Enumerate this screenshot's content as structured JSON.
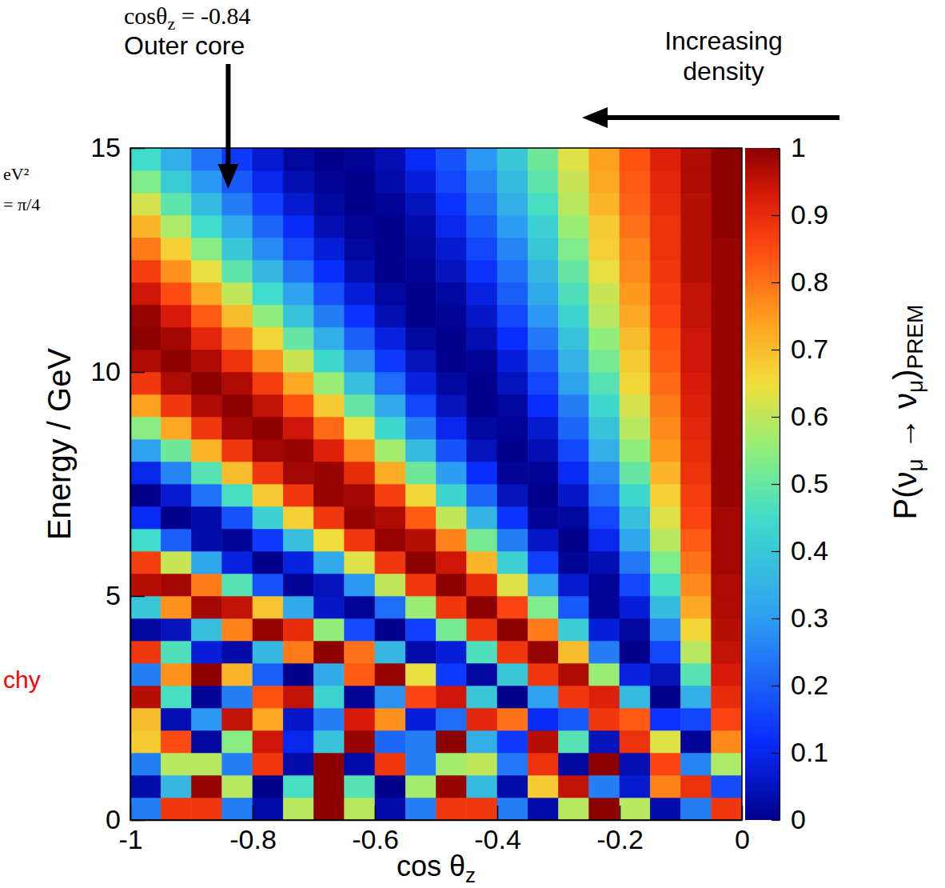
{
  "chart_data": {
    "type": "heatmap",
    "xlabel": [
      "cos θ",
      "z"
    ],
    "ylabel": "Energy / GeV",
    "xlim": [
      -1,
      0
    ],
    "xticks": [
      -1,
      -0.8,
      -0.6,
      -0.4,
      -0.2,
      0
    ],
    "ylim": [
      0,
      15
    ],
    "yticks": [
      0,
      5,
      10,
      15
    ],
    "x_bins": [
      -1,
      -0.95,
      -0.9,
      -0.85,
      -0.8,
      -0.75,
      -0.7,
      -0.65,
      -0.6,
      -0.55,
      -0.5,
      -0.45,
      -0.4,
      -0.35,
      -0.3,
      -0.25,
      -0.2,
      -0.15,
      -0.1,
      -0.05,
      0
    ],
    "y_bins": [
      0,
      0.5,
      1,
      1.5,
      2,
      2.5,
      3,
      3.5,
      4,
      4.5,
      5,
      5.5,
      6,
      6.5,
      7,
      7.5,
      8,
      8.5,
      9,
      9.5,
      10,
      10.5,
      11,
      11.5,
      12,
      12.5,
      13,
      13.5,
      14,
      14.5,
      15
    ],
    "z": [
      [
        0.25,
        0.88,
        0.88,
        0.25,
        0.03,
        0.59,
        1,
        0.59,
        0.03,
        0.25,
        0.88,
        0.88,
        0.25,
        0.03,
        0.59,
        1,
        0.59,
        0.03,
        0.25,
        0.88
      ],
      [
        0.03,
        0.36,
        0.99,
        0.59,
        0,
        0.46,
        1,
        0.48,
        0,
        0.57,
        0.99,
        0.37,
        0.03,
        0.68,
        0.95,
        0.25,
        0.07,
        0.78,
        0.89,
        0.17
      ],
      [
        0.25,
        0.59,
        0.59,
        0.25,
        0.88,
        0.03,
        1,
        0.03,
        0.88,
        0.25,
        0.57,
        0.6,
        0.24,
        0.89,
        0.02,
        1,
        0.04,
        0.86,
        0.26,
        0.58
      ],
      [
        0.68,
        0.85,
        0.02,
        0.54,
        0.94,
        0.1,
        0.39,
        0.99,
        0.21,
        0.25,
        1,
        0.34,
        0.14,
        0.96,
        0.48,
        0.05,
        0.89,
        0.63,
        0.01,
        0.77
      ],
      [
        0.7,
        0.04,
        0.29,
        0.95,
        0.73,
        0.06,
        0.25,
        0.93,
        0.76,
        0.08,
        0.22,
        0.91,
        0.8,
        0.11,
        0.19,
        0.88,
        0.83,
        0.13,
        0.16,
        0.86
      ],
      [
        0.96,
        0.46,
        0.01,
        0.25,
        0.84,
        0.95,
        0.43,
        0.01,
        0.28,
        0.86,
        0.94,
        0.4,
        0,
        0.31,
        0.88,
        0.92,
        0.37,
        0,
        0.34,
        0.9
      ],
      [
        0.25,
        0.76,
        1,
        0.71,
        0.2,
        0,
        0.33,
        0.83,
        0.99,
        0.64,
        0.14,
        0.02,
        0.4,
        0.88,
        0.97,
        0.56,
        0.09,
        0.05,
        0.48,
        0.93
      ],
      [
        0.88,
        0.47,
        0.08,
        0.03,
        0.36,
        0.79,
        1,
        0.8,
        0.36,
        0.03,
        0.08,
        0.47,
        0.88,
        0.99,
        0.7,
        0.25,
        0,
        0.16,
        0.59,
        0.95
      ],
      [
        0.02,
        0.05,
        0.38,
        0.78,
        0.99,
        0.9,
        0.55,
        0.17,
        0,
        0.15,
        0.52,
        0.88,
        1,
        0.79,
        0.41,
        0.08,
        0.02,
        0.26,
        0.66,
        0.96
      ],
      [
        0.4,
        0.76,
        0.98,
        0.95,
        0.69,
        0.33,
        0.06,
        0.01,
        0.22,
        0.56,
        0.88,
        1,
        0.86,
        0.53,
        0.19,
        0.01,
        0.08,
        0.37,
        0.73,
        0.97
      ],
      [
        0.96,
        0.98,
        0.79,
        0.48,
        0.18,
        0.01,
        0.05,
        0.29,
        0.6,
        0.88,
        1,
        0.9,
        0.63,
        0.31,
        0.07,
        0.01,
        0.16,
        0.46,
        0.77,
        0.97
      ],
      [
        0.87,
        0.61,
        0.32,
        0.09,
        0,
        0.09,
        0.33,
        0.63,
        0.88,
        1,
        0.94,
        0.71,
        0.42,
        0.15,
        0.01,
        0.04,
        0.24,
        0.53,
        0.8,
        0.98
      ],
      [
        0.45,
        0.2,
        0.03,
        0.01,
        0.14,
        0.38,
        0.65,
        0.88,
        0.99,
        0.96,
        0.78,
        0.52,
        0.25,
        0.06,
        0,
        0.1,
        0.32,
        0.59,
        0.83,
        0.98
      ],
      [
        0.11,
        0,
        0.03,
        0.18,
        0.42,
        0.67,
        0.88,
        0.99,
        0.97,
        0.83,
        0.6,
        0.35,
        0.13,
        0.01,
        0.02,
        0.16,
        0.38,
        0.63,
        0.86,
        0.98
      ],
      [
        0,
        0.07,
        0.23,
        0.46,
        0.68,
        0.88,
        0.99,
        0.98,
        0.87,
        0.66,
        0.43,
        0.21,
        0.05,
        0,
        0.06,
        0.22,
        0.44,
        0.67,
        0.87,
        0.99
      ],
      [
        0.1,
        0.26,
        0.48,
        0.7,
        0.88,
        0.98,
        0.99,
        0.9,
        0.72,
        0.51,
        0.3,
        0.12,
        0.01,
        0.01,
        0.11,
        0.27,
        0.5,
        0.71,
        0.89,
        0.99
      ],
      [
        0.31,
        0.51,
        0.71,
        0.88,
        0.98,
        0.99,
        0.92,
        0.77,
        0.57,
        0.37,
        0.18,
        0.05,
        0,
        0.04,
        0.16,
        0.34,
        0.55,
        0.75,
        0.9,
        0.99
      ],
      [
        0.54,
        0.73,
        0.88,
        0.98,
        1,
        0.94,
        0.81,
        0.64,
        0.44,
        0.25,
        0.1,
        0.02,
        0.01,
        0.07,
        0.21,
        0.39,
        0.59,
        0.77,
        0.91,
        0.99
      ],
      [
        0.74,
        0.88,
        0.97,
        1,
        0.95,
        0.84,
        0.68,
        0.5,
        0.33,
        0.16,
        0.05,
        0,
        0.02,
        0.12,
        0.25,
        0.44,
        0.62,
        0.79,
        0.92,
        0.99
      ],
      [
        0.88,
        0.97,
        1,
        0.97,
        0.87,
        0.73,
        0.56,
        0.38,
        0.22,
        0.09,
        0.02,
        0,
        0.05,
        0.16,
        0.31,
        0.48,
        0.66,
        0.81,
        0.93,
        0.99
      ],
      [
        0.97,
        1,
        0.97,
        0.89,
        0.76,
        0.61,
        0.44,
        0.28,
        0.14,
        0.05,
        0,
        0.01,
        0.08,
        0.2,
        0.35,
        0.52,
        0.68,
        0.83,
        0.94,
        0.99
      ],
      [
        1,
        0.98,
        0.91,
        0.8,
        0.66,
        0.5,
        0.34,
        0.2,
        0.09,
        0.02,
        0,
        0.04,
        0.12,
        0.24,
        0.39,
        0.55,
        0.7,
        0.84,
        0.94,
        0.99
      ],
      [
        0.99,
        0.93,
        0.83,
        0.7,
        0.55,
        0.39,
        0.25,
        0.13,
        0.04,
        0,
        0.01,
        0.06,
        0.16,
        0.29,
        0.43,
        0.59,
        0.73,
        0.86,
        0.95,
        0.99
      ],
      [
        0.94,
        0.85,
        0.73,
        0.6,
        0.45,
        0.31,
        0.18,
        0.08,
        0.02,
        0,
        0.02,
        0.09,
        0.2,
        0.33,
        0.47,
        0.61,
        0.75,
        0.87,
        0.95,
        0.99
      ],
      [
        0.87,
        0.76,
        0.64,
        0.49,
        0.36,
        0.23,
        0.12,
        0.04,
        0,
        0.01,
        0.05,
        0.13,
        0.23,
        0.36,
        0.5,
        0.64,
        0.77,
        0.88,
        0.96,
        0.99
      ],
      [
        0.79,
        0.67,
        0.54,
        0.4,
        0.27,
        0.16,
        0.08,
        0.02,
        0,
        0.02,
        0.07,
        0.16,
        0.26,
        0.4,
        0.53,
        0.67,
        0.78,
        0.89,
        0.96,
        0.99
      ],
      [
        0.71,
        0.58,
        0.45,
        0.33,
        0.21,
        0.11,
        0.04,
        0.01,
        0,
        0.03,
        0.1,
        0.19,
        0.3,
        0.42,
        0.56,
        0.68,
        0.8,
        0.89,
        0.96,
        1
      ],
      [
        0.62,
        0.49,
        0.37,
        0.25,
        0.15,
        0.07,
        0.02,
        0,
        0.01,
        0.05,
        0.13,
        0.23,
        0.34,
        0.46,
        0.59,
        0.71,
        0.82,
        0.9,
        0.96,
        1
      ],
      [
        0.53,
        0.41,
        0.29,
        0.19,
        0.1,
        0.04,
        0.01,
        0,
        0.03,
        0.08,
        0.16,
        0.26,
        0.37,
        0.49,
        0.61,
        0.73,
        0.83,
        0.91,
        0.97,
        1
      ],
      [
        0.45,
        0.34,
        0.23,
        0.14,
        0.07,
        0.02,
        0,
        0.01,
        0.04,
        0.11,
        0.18,
        0.29,
        0.4,
        0.51,
        0.63,
        0.74,
        0.84,
        0.92,
        0.97,
        1
      ]
    ],
    "colorbar": {
      "label": [
        "P(ν",
        "μ",
        " → ν",
        "μ",
        ")",
        "PREM"
      ],
      "range": [
        0,
        1
      ],
      "ticks": [
        0,
        0.1,
        0.2,
        0.3,
        0.4,
        0.5,
        0.6,
        0.7,
        0.8,
        0.9,
        1
      ]
    },
    "outer_core": {
      "x": -0.84,
      "label": [
        "cosθ",
        "z",
        " = -0.84"
      ],
      "text": "Outer core"
    },
    "density_note": "Increasing density",
    "side_notes": [
      "eV²",
      "= π/4"
    ],
    "hierarchy_note": {
      "text": "chy",
      "color": "#ff0000"
    }
  }
}
